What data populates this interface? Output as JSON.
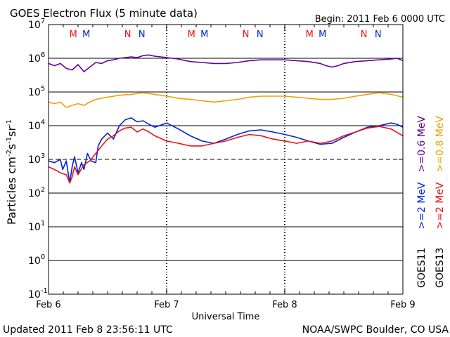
{
  "header": {
    "title": "GOES Electron Flux (5 minute data)",
    "begin": "Begin: 2011 Feb 6 0000 UTC"
  },
  "footer": {
    "updated": "Updated 2011 Feb  8 23:56:11 UTC",
    "credit": "NOAA/SWPC Boulder, CO USA"
  },
  "colors": {
    "blue": "#0022dd",
    "red": "#ee1111",
    "purple": "#660099",
    "orange": "#f0a000",
    "black": "#000000"
  },
  "chart_data": {
    "type": "line",
    "xlabel": "Universal Time",
    "ylabel_parts": [
      "Particles cm",
      "-2",
      "s",
      "-1",
      "sr",
      "-1"
    ],
    "x_range": [
      "2011-02-06T00:00",
      "2011-02-09T00:00"
    ],
    "x_ticks": [
      "Feb 6",
      "Feb 7",
      "Feb 8",
      "Feb 9"
    ],
    "y_scale": "log",
    "ylim_exp": [
      -1,
      7
    ],
    "y_ticks": [
      {
        "base": "10",
        "exp": "7"
      },
      {
        "base": "10",
        "exp": "6"
      },
      {
        "base": "10",
        "exp": "5"
      },
      {
        "base": "10",
        "exp": "4"
      },
      {
        "base": "10",
        "exp": "3"
      },
      {
        "base": "10",
        "exp": "2"
      },
      {
        "base": "10",
        "exp": "1"
      },
      {
        "base": "10",
        "exp": "0"
      },
      {
        "base": "10",
        "exp": "-1"
      }
    ],
    "threshold_dashed_exp": 3,
    "markers": [
      {
        "label": "M",
        "color": "#ee1111",
        "day": 0.21
      },
      {
        "label": "M",
        "color": "#0022dd",
        "day": 0.32
      },
      {
        "label": "N",
        "color": "#ee1111",
        "day": 0.67
      },
      {
        "label": "N",
        "color": "#0022dd",
        "day": 0.79
      },
      {
        "label": "M",
        "color": "#ee1111",
        "day": 1.21
      },
      {
        "label": "M",
        "color": "#0022dd",
        "day": 1.32
      },
      {
        "label": "N",
        "color": "#ee1111",
        "day": 1.67
      },
      {
        "label": "N",
        "color": "#0022dd",
        "day": 1.79
      },
      {
        "label": "M",
        "color": "#ee1111",
        "day": 2.21
      },
      {
        "label": "M",
        "color": "#0022dd",
        "day": 2.32
      },
      {
        "label": "N",
        "color": "#ee1111",
        "day": 2.67
      },
      {
        "label": "N",
        "color": "#0022dd",
        "day": 2.79
      }
    ],
    "legend": {
      "placement": "right",
      "columns": [
        {
          "sat": "GOES11",
          "entries": [
            {
              "text": ">=2 MeV",
              "color": "#0022dd"
            },
            {
              "text": ">=0.6 MeV",
              "color": "#660099"
            }
          ]
        },
        {
          "sat": "GOES13",
          "entries": [
            {
              "text": ">=2 MeV",
              "color": "#ee1111"
            },
            {
              "text": ">=0.8 MeV",
              "color": "#f0a000"
            }
          ]
        }
      ]
    },
    "series": [
      {
        "name": "GOES11 >=0.6 MeV",
        "color": "#660099",
        "points": [
          [
            0,
            700000.0
          ],
          [
            0.05,
            600000.0
          ],
          [
            0.1,
            700000.0
          ],
          [
            0.15,
            500000.0
          ],
          [
            0.2,
            450000.0
          ],
          [
            0.25,
            650000.0
          ],
          [
            0.3,
            400000.0
          ],
          [
            0.35,
            550000.0
          ],
          [
            0.4,
            750000.0
          ],
          [
            0.45,
            700000.0
          ],
          [
            0.5,
            850000.0
          ],
          [
            0.55,
            900000.0
          ],
          [
            0.6,
            1000000.0
          ],
          [
            0.65,
            1050000.0
          ],
          [
            0.7,
            1100000.0
          ],
          [
            0.75,
            1050000.0
          ],
          [
            0.8,
            1200000.0
          ],
          [
            0.85,
            1250000.0
          ],
          [
            0.9,
            1150000.0
          ],
          [
            0.95,
            1100000.0
          ],
          [
            1.0,
            1050000.0
          ],
          [
            1.1,
            950000.0
          ],
          [
            1.2,
            800000.0
          ],
          [
            1.3,
            750000.0
          ],
          [
            1.4,
            700000.0
          ],
          [
            1.5,
            700000.0
          ],
          [
            1.6,
            750000.0
          ],
          [
            1.7,
            850000.0
          ],
          [
            1.8,
            900000.0
          ],
          [
            1.9,
            900000.0
          ],
          [
            2.0,
            900000.0
          ],
          [
            2.1,
            850000.0
          ],
          [
            2.2,
            800000.0
          ],
          [
            2.3,
            700000.0
          ],
          [
            2.35,
            600000.0
          ],
          [
            2.4,
            550000.0
          ],
          [
            2.45,
            600000.0
          ],
          [
            2.5,
            700000.0
          ],
          [
            2.6,
            800000.0
          ],
          [
            2.7,
            850000.0
          ],
          [
            2.8,
            900000.0
          ],
          [
            2.9,
            950000.0
          ],
          [
            2.95,
            1000000.0
          ],
          [
            3.0,
            850000.0
          ]
        ]
      },
      {
        "name": "GOES13 >=0.8 MeV",
        "color": "#f0a000",
        "points": [
          [
            0,
            50000.0
          ],
          [
            0.05,
            45000.0
          ],
          [
            0.1,
            50000.0
          ],
          [
            0.15,
            35000.0
          ],
          [
            0.2,
            40000.0
          ],
          [
            0.25,
            45000.0
          ],
          [
            0.3,
            40000.0
          ],
          [
            0.35,
            50000.0
          ],
          [
            0.4,
            60000.0
          ],
          [
            0.5,
            70000.0
          ],
          [
            0.6,
            80000.0
          ],
          [
            0.7,
            85000.0
          ],
          [
            0.8,
            95000.0
          ],
          [
            0.9,
            85000.0
          ],
          [
            1.0,
            75000.0
          ],
          [
            1.1,
            65000.0
          ],
          [
            1.2,
            60000.0
          ],
          [
            1.3,
            55000.0
          ],
          [
            1.4,
            50000.0
          ],
          [
            1.5,
            55000.0
          ],
          [
            1.6,
            60000.0
          ],
          [
            1.7,
            70000.0
          ],
          [
            1.8,
            75000.0
          ],
          [
            1.9,
            75000.0
          ],
          [
            2.0,
            75000.0
          ],
          [
            2.1,
            70000.0
          ],
          [
            2.2,
            65000.0
          ],
          [
            2.3,
            60000.0
          ],
          [
            2.4,
            60000.0
          ],
          [
            2.5,
            65000.0
          ],
          [
            2.6,
            75000.0
          ],
          [
            2.7,
            85000.0
          ],
          [
            2.8,
            95000.0
          ],
          [
            2.9,
            85000.0
          ],
          [
            3.0,
            70000.0
          ]
        ]
      },
      {
        "name": "GOES11 >=2 MeV",
        "color": "#0022dd",
        "points": [
          [
            0,
            900.0
          ],
          [
            0.05,
            800.0
          ],
          [
            0.1,
            1000.0
          ],
          [
            0.12,
            500.0
          ],
          [
            0.15,
            900.0
          ],
          [
            0.18,
            200.0
          ],
          [
            0.2,
            600.0
          ],
          [
            0.22,
            1200.0
          ],
          [
            0.25,
            400.0
          ],
          [
            0.28,
            800.0
          ],
          [
            0.3,
            500.0
          ],
          [
            0.33,
            1500.0
          ],
          [
            0.36,
            900.0
          ],
          [
            0.4,
            800.0
          ],
          [
            0.42,
            2500.0
          ],
          [
            0.45,
            4000.0
          ],
          [
            0.5,
            6000.0
          ],
          [
            0.55,
            4000.0
          ],
          [
            0.6,
            10000.0
          ],
          [
            0.65,
            15000.0
          ],
          [
            0.7,
            17000.0
          ],
          [
            0.75,
            13000.0
          ],
          [
            0.8,
            14000.0
          ],
          [
            0.85,
            11000.0
          ],
          [
            0.9,
            9000.0
          ],
          [
            1.0,
            12000.0
          ],
          [
            1.1,
            8000.0
          ],
          [
            1.2,
            5000.0
          ],
          [
            1.3,
            3500.0
          ],
          [
            1.4,
            3000.0
          ],
          [
            1.5,
            4000.0
          ],
          [
            1.6,
            5500.0
          ],
          [
            1.7,
            7000.0
          ],
          [
            1.8,
            7500.0
          ],
          [
            1.9,
            6500.0
          ],
          [
            2.0,
            5500.0
          ],
          [
            2.1,
            4500.0
          ],
          [
            2.2,
            3500.0
          ],
          [
            2.3,
            2800.0
          ],
          [
            2.4,
            3000.0
          ],
          [
            2.5,
            4500.0
          ],
          [
            2.6,
            6500.0
          ],
          [
            2.7,
            9000.0
          ],
          [
            2.8,
            10000.0
          ],
          [
            2.9,
            12000.0
          ],
          [
            2.95,
            11000.0
          ],
          [
            3.0,
            9000.0
          ]
        ]
      },
      {
        "name": "GOES13 >=2 MeV",
        "color": "#ee1111",
        "points": [
          [
            0,
            600.0
          ],
          [
            0.05,
            500.0
          ],
          [
            0.1,
            400.0
          ],
          [
            0.15,
            350.0
          ],
          [
            0.18,
            200.0
          ],
          [
            0.2,
            300.0
          ],
          [
            0.22,
            600.0
          ],
          [
            0.25,
            350.0
          ],
          [
            0.3,
            700.0
          ],
          [
            0.35,
            900.0
          ],
          [
            0.4,
            1500.0
          ],
          [
            0.45,
            2500.0
          ],
          [
            0.5,
            4000.0
          ],
          [
            0.55,
            5000.0
          ],
          [
            0.6,
            7000.0
          ],
          [
            0.65,
            8500.0
          ],
          [
            0.7,
            9000.0
          ],
          [
            0.75,
            6500.0
          ],
          [
            0.8,
            8000.0
          ],
          [
            0.85,
            6500.0
          ],
          [
            0.9,
            5000.0
          ],
          [
            1.0,
            3500.0
          ],
          [
            1.1,
            3000.0
          ],
          [
            1.2,
            2500.0
          ],
          [
            1.3,
            2500.0
          ],
          [
            1.4,
            3000.0
          ],
          [
            1.5,
            3500.0
          ],
          [
            1.6,
            4500.0
          ],
          [
            1.7,
            5500.0
          ],
          [
            1.8,
            5000.0
          ],
          [
            1.9,
            4000.0
          ],
          [
            2.0,
            3500.0
          ],
          [
            2.1,
            3000.0
          ],
          [
            2.2,
            3500.0
          ],
          [
            2.3,
            3000.0
          ],
          [
            2.4,
            3500.0
          ],
          [
            2.5,
            5000.0
          ],
          [
            2.6,
            6500.0
          ],
          [
            2.7,
            8500.0
          ],
          [
            2.8,
            9500.0
          ],
          [
            2.9,
            8000.0
          ],
          [
            3.0,
            5000.0
          ]
        ]
      }
    ]
  }
}
